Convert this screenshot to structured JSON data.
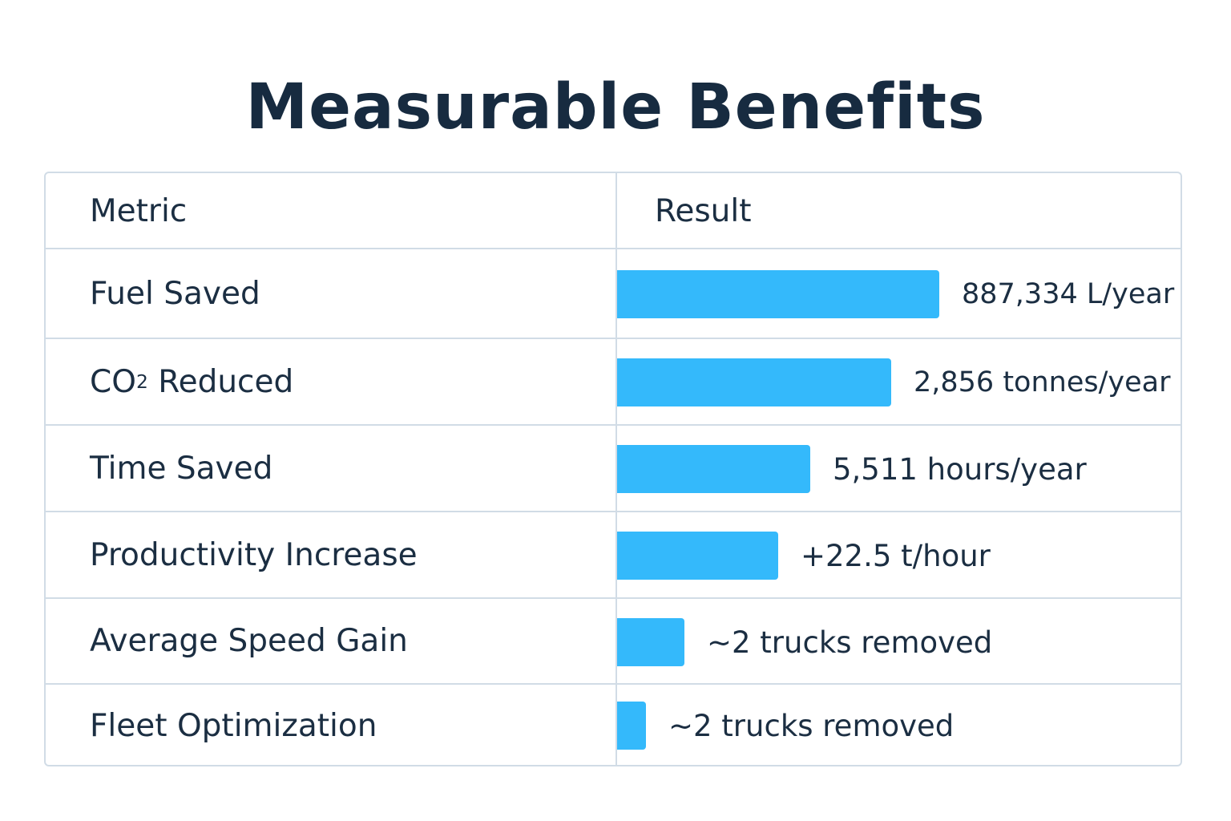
{
  "title": "Measurable Benefits",
  "table": {
    "headers": {
      "metric": "Metric",
      "result": "Result"
    }
  },
  "chart_data": {
    "type": "bar",
    "title": "Measurable Benefits",
    "categories": [
      "Fuel Saved",
      "CO2 Reduced",
      "Time Saved",
      "Productivity Increase",
      "Average Speed Gain",
      "Fleet Optimization"
    ],
    "category_parts": [
      {
        "main": "Fuel Saved",
        "sub": "",
        "rest": ""
      },
      {
        "main": "CO",
        "sub": "2",
        "rest": " Reduced"
      },
      {
        "main": "Time Saved",
        "sub": "",
        "rest": ""
      },
      {
        "main": "Productivity Increase",
        "sub": "",
        "rest": ""
      },
      {
        "main": "Average Speed Gain",
        "sub": "",
        "rest": ""
      },
      {
        "main": "Fleet Optimization",
        "sub": "",
        "rest": ""
      }
    ],
    "value_labels": [
      "887,334 L/year",
      "2,856 tonnes/year",
      "5,511 hours/year",
      "+22.5 t/hour",
      "~2 trucks removed",
      "~2 trucks removed"
    ],
    "values": [
      100,
      85,
      60,
      50,
      21,
      9
    ],
    "bar_color": "#34b9fb",
    "orientation": "horizontal",
    "grid": false
  }
}
